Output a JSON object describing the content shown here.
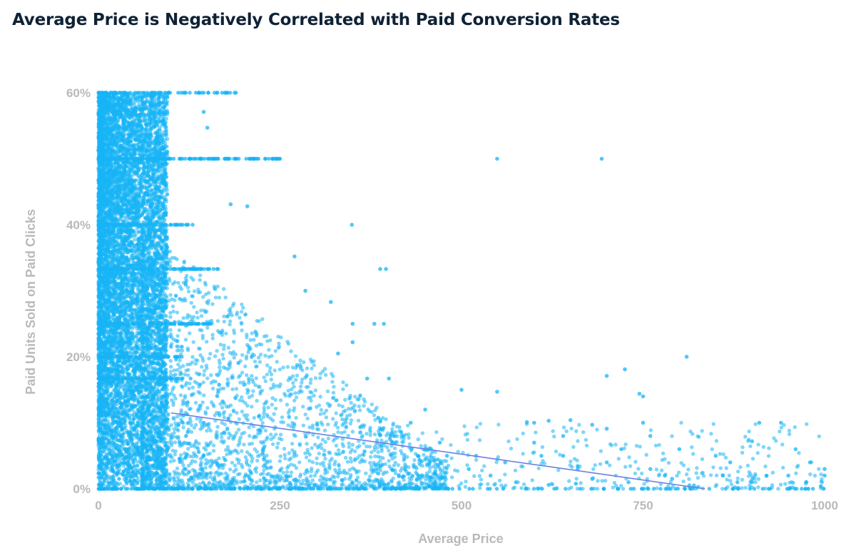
{
  "title": "Average Price is Negatively Correlated with Paid Conversion Rates",
  "chart_data": {
    "type": "scatter",
    "title": "Average Price is Negatively Correlated with Paid Conversion Rates",
    "xlabel": "Average Price",
    "ylabel": "Paid Units Sold on Paid Clicks",
    "xlim": [
      0,
      1000
    ],
    "ylim": [
      0,
      60
    ],
    "x_ticks": [
      "0",
      "250",
      "500",
      "750",
      "1000"
    ],
    "y_ticks": [
      "0%",
      "20%",
      "40%",
      "60%"
    ],
    "grid": false,
    "legend": "none",
    "point_color": "#17b4f5",
    "trendline_color": "#6f7fe0",
    "trendline": {
      "x": [
        100,
        835
      ],
      "y": [
        11.5,
        0
      ]
    },
    "series": [
      {
        "points": [
          [
            549,
            50
          ],
          [
            693,
            50
          ],
          [
            810,
            20
          ],
          [
            349,
            40
          ],
          [
            388,
            33.3
          ],
          [
            396,
            33.3
          ],
          [
            320,
            28.3
          ],
          [
            285,
            30
          ],
          [
            270,
            35.2
          ],
          [
            205,
            42.8
          ],
          [
            182,
            43.1
          ],
          [
            150,
            54.7
          ],
          [
            145,
            57.1
          ],
          [
            210,
            50
          ],
          [
            230,
            50
          ],
          [
            250,
            50
          ],
          [
            350,
            25
          ],
          [
            380,
            25
          ],
          [
            393,
            25
          ],
          [
            350,
            22.2
          ],
          [
            330,
            20.5
          ],
          [
            370,
            16.7
          ],
          [
            400,
            16.7
          ],
          [
            500,
            15
          ],
          [
            549,
            14.7
          ],
          [
            700,
            17.1
          ],
          [
            725,
            18.1
          ],
          [
            745,
            14.4
          ],
          [
            750,
            14
          ],
          [
            590,
            10.1
          ],
          [
            600,
            10
          ],
          [
            620,
            10.3
          ],
          [
            650,
            10.4
          ],
          [
            680,
            9.7
          ],
          [
            700,
            9.1
          ],
          [
            750,
            10
          ],
          [
            800,
            6
          ],
          [
            850,
            5
          ],
          [
            900,
            7.2
          ],
          [
            910,
            10
          ],
          [
            940,
            10
          ],
          [
            960,
            6
          ],
          [
            980,
            4
          ],
          [
            1000,
            3
          ],
          [
            1000,
            2
          ],
          [
            870,
            4
          ],
          [
            920,
            2
          ],
          [
            950,
            2
          ],
          [
            880,
            1
          ],
          [
            900,
            1
          ],
          [
            820,
            0.5
          ],
          [
            430,
            10
          ],
          [
            470,
            7
          ],
          [
            520,
            5
          ],
          [
            560,
            4
          ],
          [
            600,
            7
          ],
          [
            640,
            5
          ],
          [
            660,
            3
          ],
          [
            700,
            4
          ],
          [
            720,
            6
          ],
          [
            760,
            3
          ],
          [
            780,
            2
          ],
          [
            640,
            8
          ],
          [
            610,
            5
          ],
          [
            760,
            8
          ],
          [
            450,
            12
          ],
          [
            420,
            8
          ],
          [
            480,
            5
          ],
          [
            510,
            3
          ],
          [
            540,
            2
          ],
          [
            575,
            1
          ],
          [
            620,
            0.6
          ],
          [
            680,
            1.5
          ],
          [
            730,
            1
          ],
          [
            790,
            1.5
          ],
          [
            860,
            2
          ],
          [
            975,
            1
          ]
        ]
      }
    ]
  }
}
